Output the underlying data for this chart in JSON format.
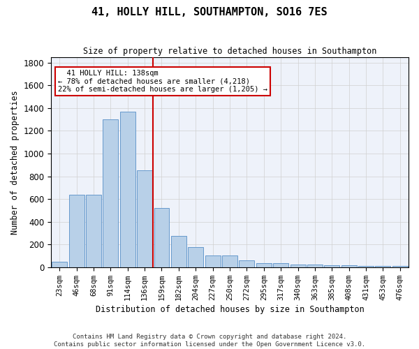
{
  "title1": "41, HOLLY HILL, SOUTHAMPTON, SO16 7ES",
  "title2": "Size of property relative to detached houses in Southampton",
  "xlabel": "Distribution of detached houses by size in Southampton",
  "ylabel": "Number of detached properties",
  "categories": [
    "23sqm",
    "46sqm",
    "68sqm",
    "91sqm",
    "114sqm",
    "136sqm",
    "159sqm",
    "182sqm",
    "204sqm",
    "227sqm",
    "250sqm",
    "272sqm",
    "295sqm",
    "317sqm",
    "340sqm",
    "363sqm",
    "385sqm",
    "408sqm",
    "431sqm",
    "453sqm",
    "476sqm"
  ],
  "values": [
    50,
    640,
    640,
    1300,
    1370,
    850,
    520,
    275,
    175,
    105,
    105,
    60,
    38,
    38,
    25,
    25,
    15,
    15,
    10,
    10,
    10
  ],
  "bar_color": "#b8d0e8",
  "bar_edge_color": "#6699cc",
  "vline_x": 5.5,
  "vline_color": "#cc0000",
  "annotation_text": "  41 HOLLY HILL: 138sqm  \n← 78% of detached houses are smaller (4,218)\n22% of semi-detached houses are larger (1,205) →",
  "annotation_box_color": "#cc0000",
  "ylim": [
    0,
    1850
  ],
  "yticks": [
    0,
    200,
    400,
    600,
    800,
    1000,
    1200,
    1400,
    1600,
    1800
  ],
  "footer1": "Contains HM Land Registry data © Crown copyright and database right 2024.",
  "footer2": "Contains public sector information licensed under the Open Government Licence v3.0.",
  "bg_color": "#eef2fa",
  "grid_color": "#d0d0d0"
}
